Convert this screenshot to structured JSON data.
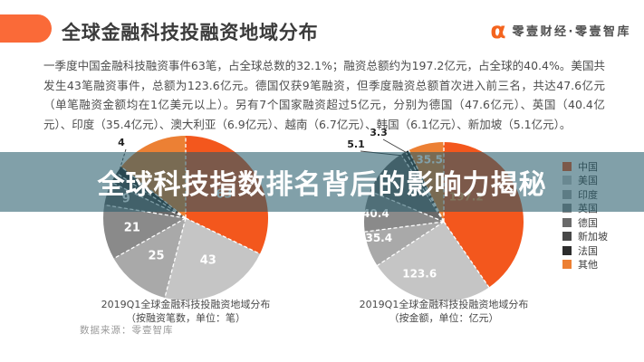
{
  "header": {
    "title": "全球金融科技投融资地域分布",
    "logo_text": "零壹财经·零壹智库",
    "accent_color": "#FA6A38"
  },
  "body": {
    "text": "一季度中国金融科技融资事件63笔，占全球总数的32.1%；融资总额约为197.2亿元，占全球的40.4%。美国共发生43笔融资事件，总额为123.6亿元。德国仅获9笔融资，但季度融资总额首次进入前三名，共达47.6亿元（单笔融资金额均在1亿美元以上）。另有7个国家融资超过5亿元，分别为德国（47.6亿元）、英国（40.4亿元）、印度（35.4亿元）、澳大利亚（6.9亿元）、越南（6.7亿元）、韩国（6.1亿元）、新加坡（5.1亿元）。"
  },
  "overlay": {
    "text": "全球科技指数排名背后的影响力揭秘",
    "band_color": "rgba(38,92,107,0.58)"
  },
  "source_note": "数据来源：零壹智库",
  "legend": [
    {
      "label": "中国",
      "color": "#F3571D"
    },
    {
      "label": "美国",
      "color": "#C5C5C5"
    },
    {
      "label": "印度",
      "color": "#A9A9A9"
    },
    {
      "label": "英国",
      "color": "#8A8A8A"
    },
    {
      "label": "德国",
      "color": "#6A6A6A"
    },
    {
      "label": "新加坡",
      "color": "#484848"
    },
    {
      "label": "法国",
      "color": "#2D2D2D"
    },
    {
      "label": "其他",
      "color": "#EC8034"
    }
  ],
  "chart_data": [
    {
      "type": "pie",
      "title": "2019Q1全球金融科技投融资地域分布",
      "subtitle": "（按融资笔数，单位：笔）",
      "unit": "笔",
      "total": 196,
      "legend_position": "right",
      "slices": [
        {
          "name": "中国",
          "value": 63,
          "label": "63"
        },
        {
          "name": "美国",
          "value": 43,
          "label": "43"
        },
        {
          "name": "印度",
          "value": 25,
          "label": "25"
        },
        {
          "name": "英国",
          "value": 21,
          "label": "21"
        },
        {
          "name": "德国",
          "value": 9,
          "label": "9"
        },
        {
          "name": "新加坡",
          "value": 4,
          "label": "4"
        },
        {
          "name": "法国",
          "value": 3,
          "label": ""
        },
        {
          "name": "其他",
          "value": 28,
          "label": ""
        }
      ]
    },
    {
      "type": "pie",
      "title": "2019Q1全球金融科技投融资地域分布",
      "subtitle": "（按金额，单位：亿元）",
      "unit": "亿元",
      "total": 488.1,
      "legend_position": "right",
      "slices": [
        {
          "name": "中国",
          "value": 197.2,
          "label": "197.2"
        },
        {
          "name": "美国",
          "value": 123.6,
          "label": "123.6"
        },
        {
          "name": "印度",
          "value": 35.4,
          "label": "35.4"
        },
        {
          "name": "英国",
          "value": 40.4,
          "label": "40.4"
        },
        {
          "name": "德国",
          "value": 47.6,
          "label": ""
        },
        {
          "name": "新加坡",
          "value": 5.1,
          "label": "5.1"
        },
        {
          "name": "法国",
          "value": 3.3,
          "label": "3.3"
        },
        {
          "name": "其他",
          "value": 35.5,
          "label": "35.5"
        }
      ]
    }
  ]
}
